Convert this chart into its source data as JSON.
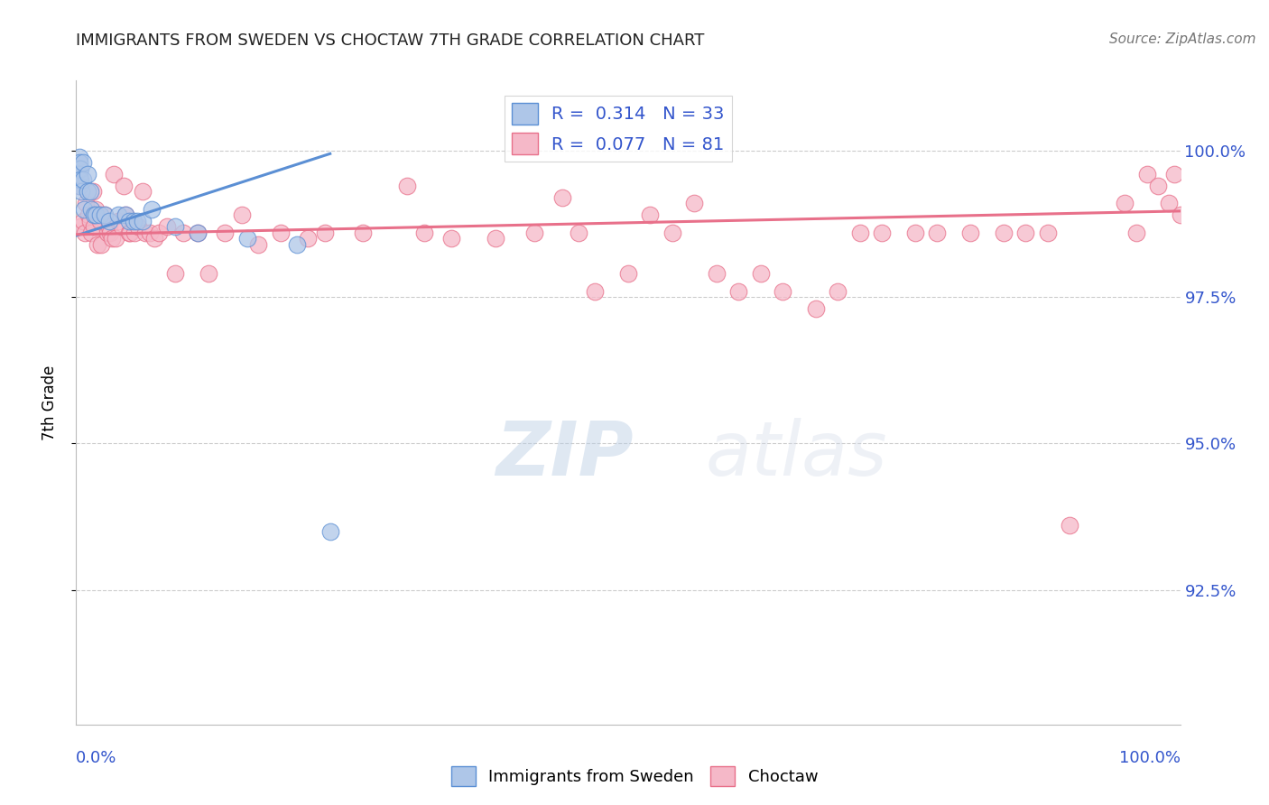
{
  "title": "IMMIGRANTS FROM SWEDEN VS CHOCTAW 7TH GRADE CORRELATION CHART",
  "source": "Source: ZipAtlas.com",
  "ylabel": "7th Grade",
  "blue_color": "#aec6e8",
  "pink_color": "#f5b8c8",
  "blue_line_color": "#5b8fd4",
  "pink_line_color": "#e8708a",
  "label_color": "#3355cc",
  "title_color": "#222222",
  "grid_color": "#cccccc",
  "background_color": "#ffffff",
  "watermark": "ZIPatlas",
  "xlim": [
    0.0,
    1.0
  ],
  "ylim": [
    90.2,
    101.2
  ],
  "y_tick_positions": [
    92.5,
    95.0,
    97.5,
    100.0
  ],
  "y_tick_labels": [
    "92.5%",
    "95.0%",
    "97.5%",
    "100.0%"
  ],
  "sweden_x": [
    0.003,
    0.003,
    0.003,
    0.003,
    0.003,
    0.003,
    0.004,
    0.004,
    0.005,
    0.006,
    0.006,
    0.007,
    0.01,
    0.01,
    0.013,
    0.014,
    0.016,
    0.018,
    0.022,
    0.026,
    0.03,
    0.038,
    0.045,
    0.048,
    0.052,
    0.055,
    0.06,
    0.068,
    0.09,
    0.11,
    0.155,
    0.2,
    0.23
  ],
  "sweden_y": [
    99.9,
    99.8,
    99.7,
    99.6,
    99.5,
    99.4,
    99.7,
    99.5,
    99.3,
    99.8,
    99.5,
    99.0,
    99.6,
    99.3,
    99.3,
    99.0,
    98.9,
    98.9,
    98.9,
    98.9,
    98.8,
    98.9,
    98.9,
    98.8,
    98.8,
    98.8,
    98.8,
    99.0,
    98.7,
    98.6,
    98.5,
    98.4,
    93.5
  ],
  "choctaw_x": [
    0.003,
    0.004,
    0.006,
    0.008,
    0.009,
    0.011,
    0.013,
    0.014,
    0.015,
    0.016,
    0.018,
    0.019,
    0.02,
    0.022,
    0.023,
    0.026,
    0.028,
    0.03,
    0.031,
    0.032,
    0.034,
    0.036,
    0.038,
    0.041,
    0.043,
    0.045,
    0.048,
    0.049,
    0.053,
    0.056,
    0.06,
    0.063,
    0.067,
    0.071,
    0.075,
    0.082,
    0.09,
    0.097,
    0.11,
    0.12,
    0.135,
    0.15,
    0.165,
    0.185,
    0.21,
    0.225,
    0.26,
    0.3,
    0.315,
    0.34,
    0.38,
    0.415,
    0.44,
    0.455,
    0.47,
    0.5,
    0.52,
    0.54,
    0.56,
    0.58,
    0.6,
    0.62,
    0.64,
    0.67,
    0.69,
    0.71,
    0.73,
    0.76,
    0.78,
    0.81,
    0.84,
    0.86,
    0.88,
    0.9,
    0.95,
    0.96,
    0.97,
    0.98,
    0.99,
    0.995,
    1.0
  ],
  "choctaw_y": [
    99.4,
    98.7,
    98.8,
    98.6,
    99.1,
    98.9,
    98.8,
    98.6,
    99.3,
    98.7,
    99.0,
    98.4,
    98.9,
    98.8,
    98.4,
    98.9,
    98.6,
    98.7,
    98.6,
    98.5,
    99.6,
    98.5,
    98.8,
    98.7,
    99.4,
    98.9,
    98.6,
    98.6,
    98.6,
    98.7,
    99.3,
    98.6,
    98.6,
    98.5,
    98.6,
    98.7,
    97.9,
    98.6,
    98.6,
    97.9,
    98.6,
    98.9,
    98.4,
    98.6,
    98.5,
    98.6,
    98.6,
    99.4,
    98.6,
    98.5,
    98.5,
    98.6,
    99.2,
    98.6,
    97.6,
    97.9,
    98.9,
    98.6,
    99.1,
    97.9,
    97.6,
    97.9,
    97.6,
    97.3,
    97.6,
    98.6,
    98.6,
    98.6,
    98.6,
    98.6,
    98.6,
    98.6,
    98.6,
    93.6,
    99.1,
    98.6,
    99.6,
    99.4,
    99.1,
    99.6,
    98.9
  ],
  "blue_trend_x": [
    0.0,
    0.23
  ],
  "blue_trend_y": [
    98.55,
    99.95
  ],
  "pink_trend_x": [
    0.0,
    1.0
  ],
  "pink_trend_y": [
    98.57,
    98.97
  ],
  "legend_labels": [
    "R =  0.314   N = 33",
    "R =  0.077   N = 81"
  ],
  "bottom_legend_labels": [
    "Immigrants from Sweden",
    "Choctaw"
  ]
}
